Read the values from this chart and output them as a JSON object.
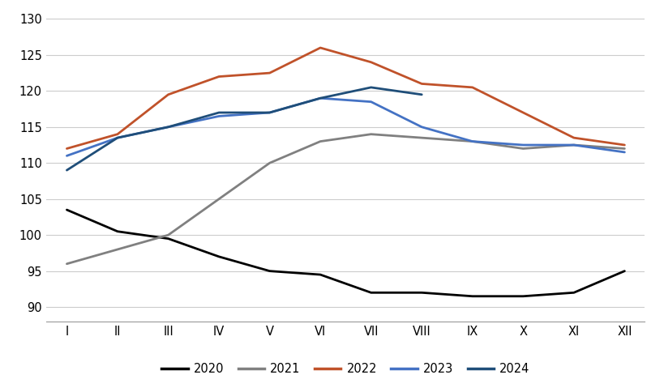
{
  "x_labels": [
    "I",
    "II",
    "III",
    "IV",
    "V",
    "VI",
    "VII",
    "VIII",
    "IX",
    "X",
    "XI",
    "XII"
  ],
  "series": {
    "2020": [
      103.5,
      100.5,
      99.5,
      97.0,
      95.0,
      94.5,
      92.0,
      92.0,
      91.5,
      91.5,
      92.0,
      95.0
    ],
    "2021": [
      96.0,
      98.0,
      100.0,
      105.0,
      110.0,
      113.0,
      114.0,
      113.5,
      113.0,
      112.0,
      112.5,
      112.0
    ],
    "2022": [
      112.0,
      114.0,
      119.5,
      122.0,
      122.5,
      126.0,
      124.0,
      121.0,
      120.5,
      117.0,
      113.5,
      112.5
    ],
    "2023": [
      111.0,
      113.5,
      115.0,
      116.5,
      117.0,
      119.0,
      118.5,
      115.0,
      113.0,
      112.5,
      112.5,
      111.5
    ],
    "2024": [
      109.0,
      113.5,
      115.0,
      117.0,
      117.0,
      119.0,
      120.5,
      119.5,
      null,
      null,
      null,
      null
    ]
  },
  "colors": {
    "2020": "#000000",
    "2021": "#808080",
    "2022": "#C0522A",
    "2023": "#4472C4",
    "2024": "#1F4E79"
  },
  "linewidth": 2.0,
  "ylim": [
    88,
    131
  ],
  "yticks": [
    90,
    95,
    100,
    105,
    110,
    115,
    120,
    125,
    130
  ],
  "background_color": "#ffffff",
  "grid_color": "#cccccc",
  "legend_labels": [
    "2020",
    "2021",
    "2022",
    "2023",
    "2024"
  ]
}
